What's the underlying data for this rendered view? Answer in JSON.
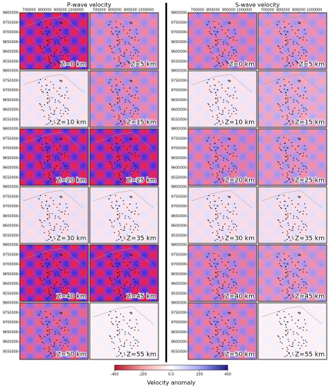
{
  "columns": [
    {
      "title": "P-wave velocity",
      "panels": [
        "Z=0 km",
        "Z=5 km",
        "Z=10 km",
        "Z=15 km",
        "Z=20 km",
        "Z=25 km",
        "Z=30 km",
        "Z=35 km",
        "Z=40 km",
        "Z=45 km",
        "Z=50 km",
        "Z=55 km"
      ]
    },
    {
      "title": "S-wave velocity",
      "panels": [
        "Z=0 km",
        "Z=5 km",
        "Z=10 km",
        "Z=15 km",
        "Z=20 km",
        "Z=25 km",
        "Z=30 km",
        "Z=35 km",
        "Z=40 km",
        "Z=45 km",
        "Z=50 km",
        "Z=55 km"
      ]
    }
  ],
  "xlim": [
    640000,
    1080000
  ],
  "xticks": [
    700000,
    800000,
    900000,
    1000000
  ],
  "ylim": [
    9510000,
    9800000
  ],
  "yticks": [
    9550000,
    9600000,
    9650000,
    9700000,
    9750000,
    9800000
  ],
  "colorbar": {
    "label": "Velocity anomaly",
    "lim": [
      -400,
      400
    ],
    "ticks": [
      -400,
      -200,
      {
        "value": 0,
        "label": "0.0"
      },
      200,
      400
    ]
  }
}
